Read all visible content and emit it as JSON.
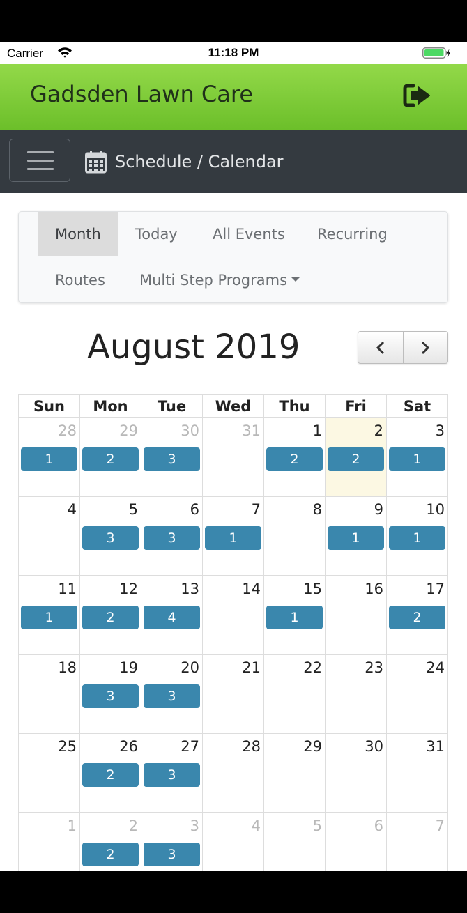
{
  "status_bar": {
    "carrier": "Carrier",
    "time": "11:18 PM"
  },
  "app": {
    "title": "Gadsden Lawn Care"
  },
  "navbar": {
    "breadcrumb": "Schedule / Calendar"
  },
  "tabs": [
    {
      "label": "Month",
      "active": true
    },
    {
      "label": "Today"
    },
    {
      "label": "All Events"
    },
    {
      "label": "Recurring"
    },
    {
      "label": "Routes"
    },
    {
      "label": "Multi Step Programs",
      "dropdown": true
    }
  ],
  "calendar": {
    "title": "August 2019",
    "prev_label": "‹",
    "next_label": "›",
    "weekdays": [
      "Sun",
      "Mon",
      "Tue",
      "Wed",
      "Thu",
      "Fri",
      "Sat"
    ],
    "weeks": [
      [
        {
          "day": "28",
          "other": true,
          "events": "1"
        },
        {
          "day": "29",
          "other": true,
          "events": "2"
        },
        {
          "day": "30",
          "other": true,
          "events": "3"
        },
        {
          "day": "31",
          "other": true
        },
        {
          "day": "1",
          "events": "2"
        },
        {
          "day": "2",
          "today": true,
          "events": "2"
        },
        {
          "day": "3",
          "events": "1"
        }
      ],
      [
        {
          "day": "4"
        },
        {
          "day": "5",
          "events": "3"
        },
        {
          "day": "6",
          "events": "3"
        },
        {
          "day": "7",
          "events": "1"
        },
        {
          "day": "8"
        },
        {
          "day": "9",
          "events": "1"
        },
        {
          "day": "10",
          "events": "1"
        }
      ],
      [
        {
          "day": "11",
          "events": "1"
        },
        {
          "day": "12",
          "events": "2"
        },
        {
          "day": "13",
          "events": "4"
        },
        {
          "day": "14"
        },
        {
          "day": "15",
          "events": "1"
        },
        {
          "day": "16"
        },
        {
          "day": "17",
          "events": "2"
        }
      ],
      [
        {
          "day": "18"
        },
        {
          "day": "19",
          "events": "3"
        },
        {
          "day": "20",
          "events": "3"
        },
        {
          "day": "21"
        },
        {
          "day": "22"
        },
        {
          "day": "23"
        },
        {
          "day": "24"
        }
      ],
      [
        {
          "day": "25"
        },
        {
          "day": "26",
          "events": "2"
        },
        {
          "day": "27",
          "events": "3"
        },
        {
          "day": "28"
        },
        {
          "day": "29"
        },
        {
          "day": "30"
        },
        {
          "day": "31"
        }
      ],
      [
        {
          "day": "1",
          "other": true
        },
        {
          "day": "2",
          "other": true,
          "events": "2"
        },
        {
          "day": "3",
          "other": true,
          "events": "3"
        },
        {
          "day": "4",
          "other": true
        },
        {
          "day": "5",
          "other": true
        },
        {
          "day": "6",
          "other": true
        },
        {
          "day": "7",
          "other": true
        }
      ]
    ]
  },
  "colors": {
    "header_green": "#7fcb3a",
    "navbar": "#343a40",
    "event": "#3a87ad",
    "today_bg": "#fcf8e3"
  }
}
